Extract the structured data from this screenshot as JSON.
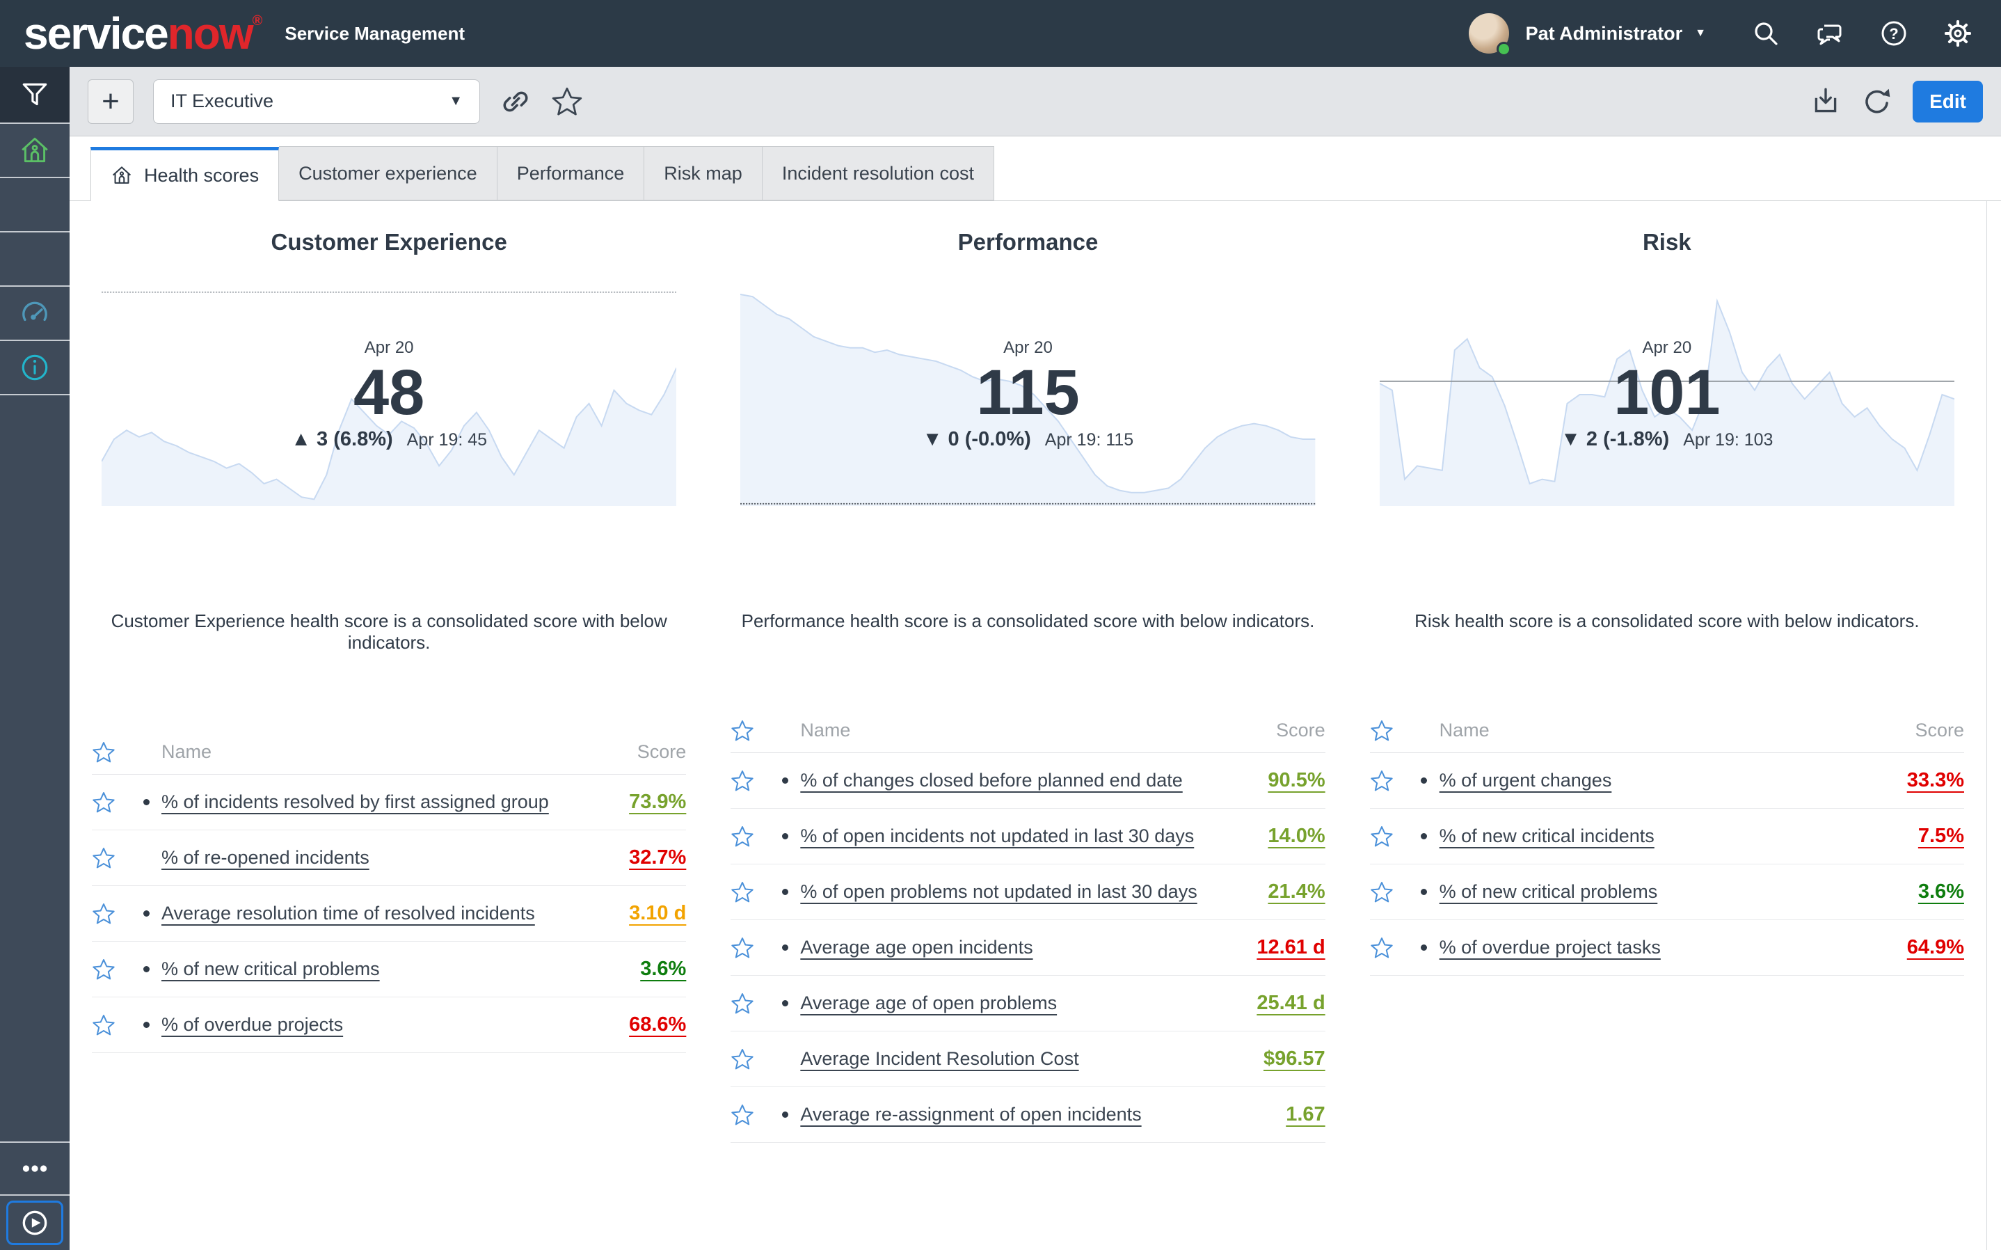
{
  "header": {
    "logo_text_1": "service",
    "logo_text_2": "now",
    "logo_registered": "®",
    "app_title": "Service Management",
    "user_name": "Pat Administrator"
  },
  "toolbar": {
    "add_button": "+",
    "dashboard_selector_value": "IT Executive",
    "edit_button": "Edit"
  },
  "tabs": [
    {
      "label": "Health scores",
      "active": true,
      "icon": "home-icon"
    },
    {
      "label": "Customer experience",
      "active": false
    },
    {
      "label": "Performance",
      "active": false
    },
    {
      "label": "Risk map",
      "active": false
    },
    {
      "label": "Incident resolution cost",
      "active": false
    }
  ],
  "table_headers": {
    "name": "Name",
    "score": "Score"
  },
  "colors": {
    "accent_blue": "#1F7BE0",
    "score_good_olive": "#77A22D",
    "score_good_green": "#0E7D0E",
    "score_warn_amber": "#F2A300",
    "score_bad_red": "#E00000",
    "sparkline_stroke": "#C7D9F1",
    "sparkline_fill": "#EDF3FB",
    "table_star_blue": "#4A90D9"
  },
  "sidebar": {
    "items": [
      {
        "icon": "filter-icon",
        "tone": "dark",
        "color": "#FFFFFF"
      },
      {
        "icon": "home-icon",
        "tone": "normal",
        "color": "#5BC066"
      },
      {
        "icon": null
      },
      {
        "icon": null
      },
      {
        "icon": "gauge-icon",
        "color": "#4E97B8"
      },
      {
        "icon": "info-icon",
        "color": "#22B5CB"
      }
    ],
    "bottom_items": [
      {
        "icon": "more-options-icon",
        "color": "#FFFFFF",
        "framed": false
      },
      {
        "icon": "play-icon",
        "color": "#FFFFFF",
        "framed": true
      }
    ]
  },
  "columns": [
    {
      "title": "Customer Experience",
      "date_label": "Apr 20",
      "score_value": "48",
      "delta_arrow": "▲",
      "delta_text": "3 (6.8%)",
      "previous_label": "Apr 19: 45",
      "description": "Customer Experience health score is a consolidated score with below indicators.",
      "rows": [
        {
          "name": "% of incidents resolved by first assigned group",
          "score": "73.9%",
          "score_color": "#77A22D",
          "bullet": true
        },
        {
          "name": "% of re-opened incidents",
          "score": "32.7%",
          "score_color": "#E00000",
          "bullet": false
        },
        {
          "name": "Average resolution time of resolved incidents",
          "score": "3.10 d",
          "score_color": "#F2A300",
          "bullet": true
        },
        {
          "name": "% of new critical problems",
          "score": "3.6%",
          "score_color": "#0E7D0E",
          "bullet": true
        },
        {
          "name": "% of overdue projects",
          "score": "68.6%",
          "score_color": "#E00000",
          "bullet": true
        }
      ]
    },
    {
      "title": "Performance",
      "date_label": "Apr 20",
      "score_value": "115",
      "delta_arrow": "▼",
      "delta_text": "0 (-0.0%)",
      "previous_label": "Apr 19: 115",
      "description": "Performance health score is a consolidated score with below indicators.",
      "rows": [
        {
          "name": "% of changes closed before planned end date",
          "score": "90.5%",
          "score_color": "#77A22D",
          "bullet": true
        },
        {
          "name": "% of open incidents not updated in last 30 days",
          "score": "14.0%",
          "score_color": "#77A22D",
          "bullet": true
        },
        {
          "name": "% of open problems not updated in last 30 days",
          "score": "21.4%",
          "score_color": "#77A22D",
          "bullet": true
        },
        {
          "name": "Average age open incidents",
          "score": "12.61 d",
          "score_color": "#E00000",
          "bullet": true
        },
        {
          "name": "Average age of open problems",
          "score": "25.41 d",
          "score_color": "#77A22D",
          "bullet": true
        },
        {
          "name": "Average Incident Resolution Cost",
          "score": "$96.57",
          "score_color": "#77A22D",
          "bullet": false
        },
        {
          "name": "Average re-assignment of open incidents",
          "score": "1.67",
          "score_color": "#77A22D",
          "bullet": true
        }
      ]
    },
    {
      "title": "Risk",
      "date_label": "Apr 20",
      "score_value": "101",
      "delta_arrow": "▼",
      "delta_text": "2 (-1.8%)",
      "previous_label": "Apr 19: 103",
      "description": "Risk health score is a consolidated score with below indicators.",
      "rows": [
        {
          "name": "% of urgent changes",
          "score": "33.3%",
          "score_color": "#E00000",
          "bullet": true
        },
        {
          "name": "% of new critical incidents",
          "score": "7.5%",
          "score_color": "#E00000",
          "bullet": true
        },
        {
          "name": "% of new critical problems",
          "score": "3.6%",
          "score_color": "#0E7D0E",
          "bullet": true
        },
        {
          "name": "% of overdue project tasks",
          "score": "64.9%",
          "score_color": "#E00000",
          "bullet": true
        }
      ]
    }
  ],
  "chart_data": [
    {
      "type": "area",
      "title": "Customer Experience health score trend",
      "latest": {
        "label": "Apr 20",
        "value": 48
      },
      "previous": {
        "label": "Apr 19",
        "value": 45
      },
      "change": {
        "absolute": 3,
        "percent": 6.8,
        "direction": "up"
      },
      "threshold_line": {
        "position_pct": 96,
        "style": "dashed",
        "color": "#A9AEB4"
      },
      "points_pct": [
        20,
        30,
        34,
        31,
        33,
        29,
        27,
        24,
        22,
        20,
        17,
        19,
        15,
        10,
        12,
        8,
        4,
        3,
        14,
        34,
        48,
        42,
        36,
        32,
        38,
        35,
        28,
        18,
        25,
        36,
        42,
        34,
        22,
        14,
        24,
        34,
        30,
        26,
        40,
        46,
        36,
        52,
        46,
        43,
        41,
        50,
        62
      ]
    },
    {
      "type": "area",
      "title": "Performance health score trend",
      "latest": {
        "label": "Apr 20",
        "value": 115
      },
      "previous": {
        "label": "Apr 19",
        "value": 115
      },
      "change": {
        "absolute": 0,
        "percent": -0.0,
        "direction": "down"
      },
      "threshold_line": {
        "position_pct": 1,
        "style": "dashed",
        "color": "#5A6068"
      },
      "points_pct": [
        95,
        94,
        90,
        86,
        84,
        80,
        76,
        74,
        72,
        71,
        71,
        69,
        70,
        68,
        67,
        66,
        65,
        63,
        61,
        58,
        56,
        57,
        56,
        54,
        50,
        44,
        38,
        30,
        22,
        14,
        9,
        7,
        6,
        6,
        7,
        8,
        12,
        19,
        26,
        31,
        34,
        36,
        37,
        36,
        34,
        31,
        30,
        30
      ]
    },
    {
      "type": "area",
      "title": "Risk health score trend",
      "latest": {
        "label": "Apr 20",
        "value": 101
      },
      "previous": {
        "label": "Apr 19",
        "value": 103
      },
      "change": {
        "absolute": 2,
        "percent": -1.8,
        "direction": "down"
      },
      "threshold_line": {
        "position_pct": 56,
        "style": "solid",
        "color": "#8F959B"
      },
      "points_pct": [
        55,
        52,
        12,
        18,
        17,
        16,
        70,
        75,
        62,
        58,
        45,
        28,
        10,
        12,
        11,
        46,
        50,
        50,
        49,
        66,
        70,
        52,
        40,
        44,
        40,
        34,
        48,
        92,
        78,
        60,
        52,
        62,
        68,
        55,
        48,
        54,
        60,
        46,
        40,
        44,
        36,
        30,
        26,
        16,
        32,
        50,
        48
      ]
    }
  ]
}
